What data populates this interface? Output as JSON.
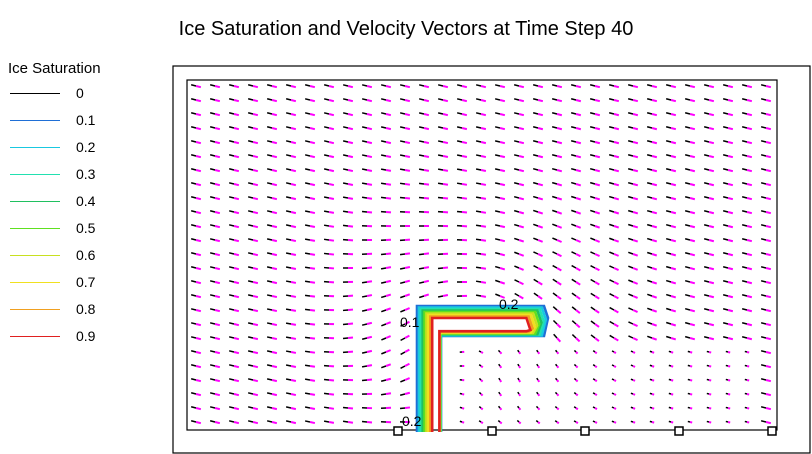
{
  "chart_data": {
    "type": "vector-contour",
    "title": "Ice Saturation and Velocity Vectors at Time Step 40",
    "legend": {
      "title": "Ice Saturation",
      "placement": "left",
      "entries": [
        {
          "label": "0",
          "color": "#000000"
        },
        {
          "label": "0.1",
          "color": "#1f6fd6"
        },
        {
          "label": "0.2",
          "color": "#19c8e0"
        },
        {
          "label": "0.3",
          "color": "#22e0b0"
        },
        {
          "label": "0.4",
          "color": "#20c060"
        },
        {
          "label": "0.5",
          "color": "#60e020"
        },
        {
          "label": "0.6",
          "color": "#c8e020"
        },
        {
          "label": "0.7",
          "color": "#f0e020"
        },
        {
          "label": "0.8",
          "color": "#f0a020"
        },
        {
          "label": "0.9",
          "color": "#e02020"
        }
      ]
    },
    "contour_labels": [
      "0.2",
      "0.1",
      "0.2"
    ],
    "vector_color": "#ff00ff",
    "grid": false
  }
}
